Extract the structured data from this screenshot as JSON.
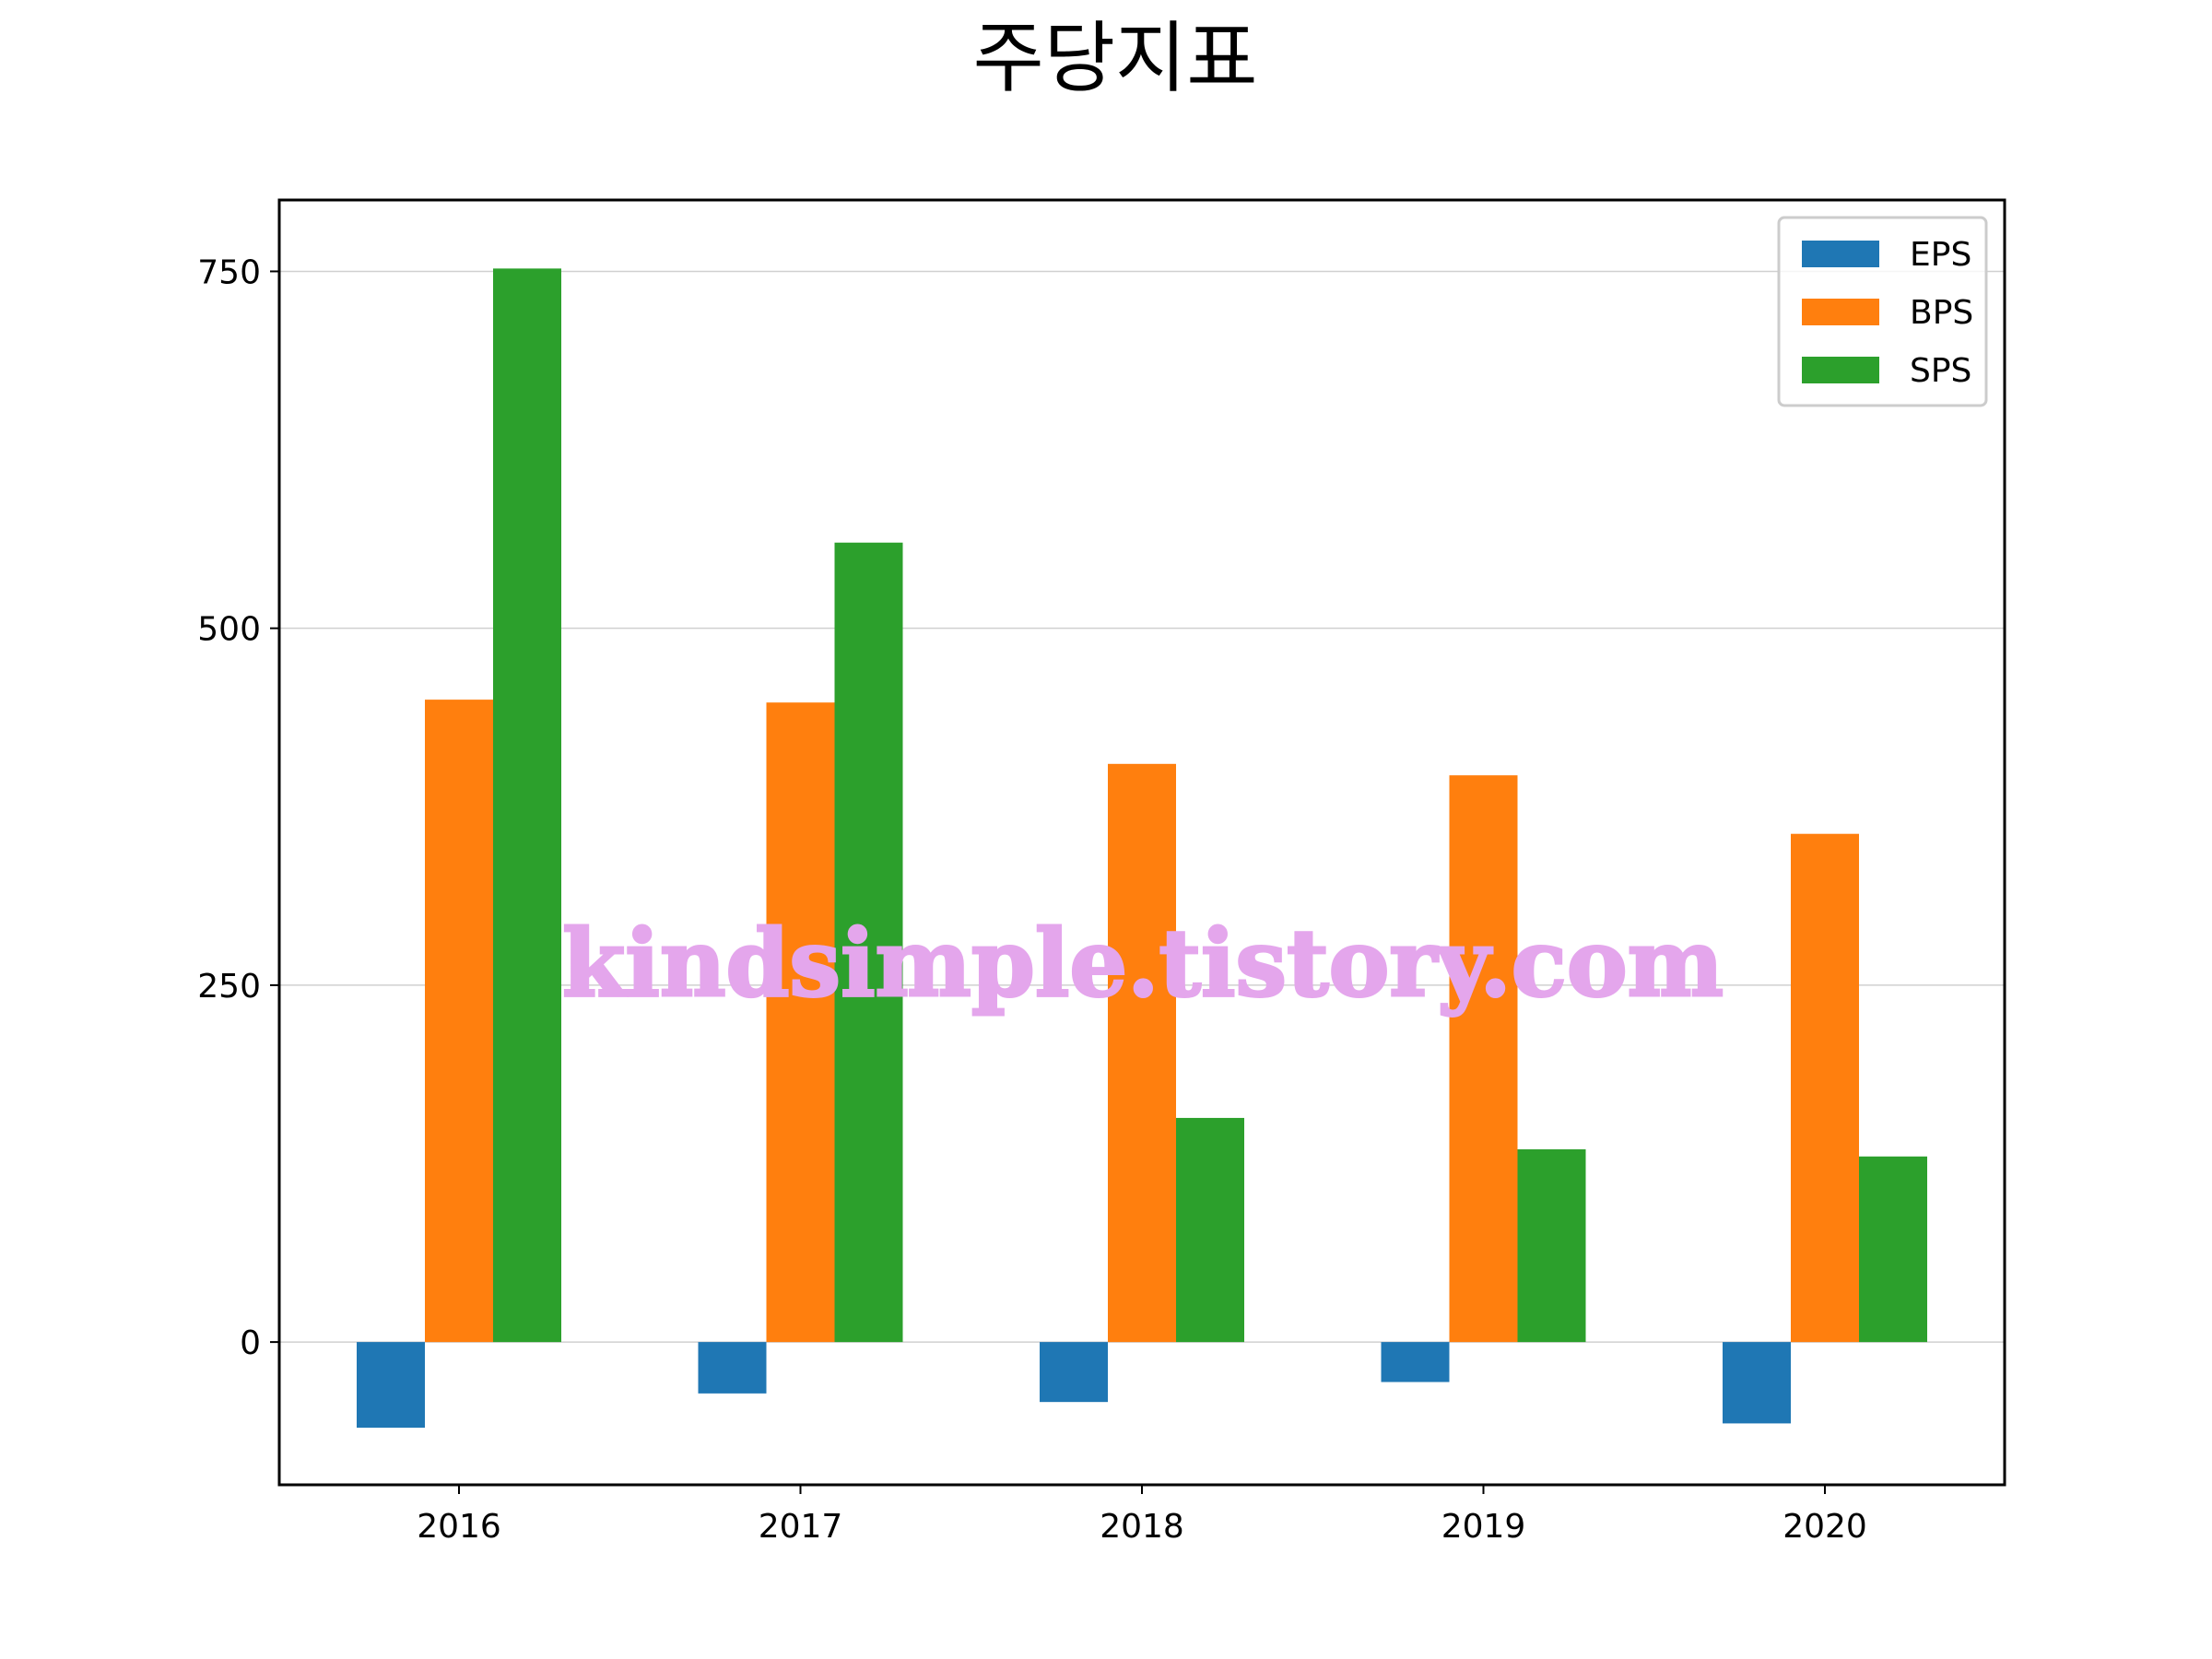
{
  "chart_data": {
    "type": "bar",
    "title": "주당지표",
    "xlabel": "",
    "ylabel": "",
    "categories": [
      "2016",
      "2017",
      "2018",
      "2019",
      "2020"
    ],
    "series": [
      {
        "name": "EPS",
        "color": "#1f77b4",
        "values": [
          -60,
          -36,
          -42,
          -28,
          -57
        ]
      },
      {
        "name": "BPS",
        "color": "#ff7f0e",
        "values": [
          450,
          448,
          405,
          397,
          356
        ]
      },
      {
        "name": "SPS",
        "color": "#2ca02c",
        "values": [
          752,
          560,
          157,
          135,
          130
        ]
      }
    ],
    "ylim": [
      -100,
      800
    ],
    "yticks": [
      0,
      250,
      500,
      750
    ],
    "ytick_labels": [
      "0",
      "250",
      "500",
      "750"
    ],
    "grid": "y",
    "legend_position": "top-right"
  },
  "watermark": {
    "text": "kindsimple.tistory.com",
    "color": "#e4a6ec"
  }
}
